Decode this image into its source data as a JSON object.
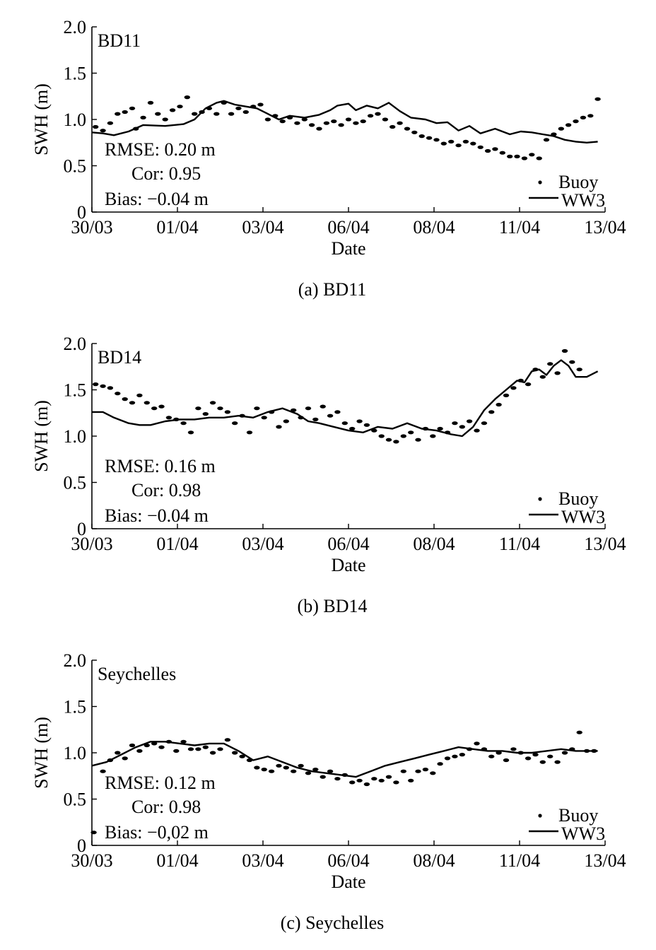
{
  "chart_data": [
    {
      "type": "line",
      "panel_caption": "(a) BD11",
      "station": "BD11",
      "ylabel": "SWH (m)",
      "xlabel": "Date",
      "ylim": [
        0,
        2.0
      ],
      "yticks": [
        "0",
        "0.5",
        "1.0",
        "1.5",
        "2.0"
      ],
      "xticks": [
        "30/03",
        "01/04",
        "03/04",
        "06/04",
        "08/04",
        "11/04",
        "13/04"
      ],
      "xlim": [
        0,
        14
      ],
      "stats": [
        "RMSE: 0.20 m",
        "Cor: 0.95",
        "Bias: −0.04 m"
      ],
      "legend": [
        "Buoy",
        "WW3"
      ],
      "series": [
        {
          "name": "WW3",
          "style": "line",
          "x": [
            0,
            0.3,
            0.6,
            1.0,
            1.4,
            2.0,
            2.5,
            2.8,
            3.1,
            3.4,
            3.6,
            3.9,
            4.2,
            4.5,
            4.8,
            5.1,
            5.4,
            5.8,
            6.2,
            6.5,
            6.7,
            7.0,
            7.2,
            7.5,
            7.8,
            8.1,
            8.4,
            8.7,
            9.1,
            9.4,
            9.7,
            10.0,
            10.3,
            10.6,
            11.0,
            11.4,
            11.7,
            12.0,
            12.3,
            12.6,
            12.9,
            13.2,
            13.5,
            13.8
          ],
          "y": [
            0.86,
            0.85,
            0.83,
            0.87,
            0.94,
            0.93,
            0.95,
            1.0,
            1.12,
            1.18,
            1.2,
            1.16,
            1.14,
            1.12,
            1.06,
            1.0,
            1.04,
            1.02,
            1.05,
            1.1,
            1.15,
            1.17,
            1.1,
            1.15,
            1.12,
            1.18,
            1.09,
            1.02,
            1.0,
            0.96,
            0.97,
            0.88,
            0.93,
            0.85,
            0.9,
            0.84,
            0.87,
            0.86,
            0.84,
            0.82,
            0.78,
            0.76,
            0.75,
            0.76
          ]
        },
        {
          "name": "Buoy",
          "style": "dots",
          "x": [
            0.1,
            0.3,
            0.5,
            0.7,
            0.9,
            1.1,
            1.2,
            1.4,
            1.6,
            1.8,
            2.0,
            2.2,
            2.4,
            2.6,
            2.8,
            3.0,
            3.2,
            3.4,
            3.6,
            3.8,
            4.0,
            4.2,
            4.4,
            4.6,
            4.8,
            5.0,
            5.2,
            5.4,
            5.6,
            5.8,
            6.0,
            6.2,
            6.4,
            6.6,
            6.8,
            7.0,
            7.2,
            7.4,
            7.6,
            7.8,
            8.0,
            8.2,
            8.4,
            8.6,
            8.8,
            9.0,
            9.2,
            9.4,
            9.6,
            9.8,
            10.0,
            10.2,
            10.4,
            10.6,
            10.8,
            11.0,
            11.2,
            11.4,
            11.6,
            11.8,
            12.0,
            12.2,
            12.4,
            12.6,
            12.8,
            13.0,
            13.2,
            13.4,
            13.6,
            13.8
          ],
          "y": [
            0.92,
            0.88,
            0.96,
            1.06,
            1.08,
            1.12,
            0.9,
            1.02,
            1.18,
            1.06,
            1.0,
            1.1,
            1.14,
            1.24,
            1.06,
            1.08,
            1.12,
            1.06,
            1.18,
            1.06,
            1.12,
            1.08,
            1.14,
            1.16,
            1.0,
            1.04,
            0.98,
            1.02,
            0.96,
            1.0,
            0.94,
            0.9,
            0.96,
            0.98,
            0.94,
            1.0,
            0.96,
            0.98,
            1.04,
            1.06,
            1.0,
            0.92,
            0.96,
            0.9,
            0.86,
            0.82,
            0.8,
            0.78,
            0.74,
            0.76,
            0.72,
            0.76,
            0.74,
            0.7,
            0.66,
            0.68,
            0.64,
            0.6,
            0.6,
            0.58,
            0.62,
            0.58,
            0.78,
            0.84,
            0.9,
            0.94,
            0.98,
            1.02,
            1.04,
            1.22
          ]
        }
      ]
    },
    {
      "type": "line",
      "panel_caption": "(b) BD14",
      "station": "BD14",
      "ylabel": "SWH (m)",
      "xlabel": "Date",
      "ylim": [
        0,
        2.0
      ],
      "yticks": [
        "0",
        "0.5",
        "1.0",
        "1.5",
        "2.0"
      ],
      "xticks": [
        "30/03",
        "01/04",
        "03/04",
        "06/04",
        "08/04",
        "11/04",
        "13/04"
      ],
      "xlim": [
        0,
        14
      ],
      "stats": [
        "RMSE: 0.16 m",
        "Cor: 0.98",
        "Bias: −0.04 m"
      ],
      "legend": [
        "Buoy",
        "WW3"
      ],
      "series": [
        {
          "name": "WW3",
          "style": "line",
          "x": [
            0,
            0.3,
            0.6,
            1.0,
            1.3,
            1.6,
            2.0,
            2.4,
            2.8,
            3.2,
            3.6,
            4.0,
            4.4,
            4.8,
            5.2,
            5.6,
            5.9,
            6.2,
            6.6,
            7.0,
            7.4,
            7.8,
            8.2,
            8.6,
            9.0,
            9.4,
            9.8,
            10.1,
            10.4,
            10.7,
            11.0,
            11.3,
            11.6,
            11.8,
            12.0,
            12.2,
            12.4,
            12.6,
            12.8,
            13.0,
            13.2,
            13.5,
            13.8
          ],
          "y": [
            1.26,
            1.26,
            1.2,
            1.14,
            1.12,
            1.12,
            1.16,
            1.18,
            1.18,
            1.2,
            1.2,
            1.22,
            1.2,
            1.26,
            1.3,
            1.24,
            1.16,
            1.14,
            1.1,
            1.06,
            1.04,
            1.1,
            1.08,
            1.14,
            1.08,
            1.06,
            1.02,
            1.0,
            1.1,
            1.28,
            1.4,
            1.5,
            1.6,
            1.58,
            1.7,
            1.72,
            1.66,
            1.76,
            1.82,
            1.76,
            1.64,
            1.64,
            1.7
          ]
        },
        {
          "name": "Buoy",
          "style": "dots",
          "x": [
            0.1,
            0.3,
            0.5,
            0.7,
            0.9,
            1.1,
            1.3,
            1.5,
            1.7,
            1.9,
            2.1,
            2.3,
            2.5,
            2.7,
            2.9,
            3.1,
            3.3,
            3.5,
            3.7,
            3.9,
            4.1,
            4.3,
            4.5,
            4.7,
            4.9,
            5.1,
            5.3,
            5.5,
            5.7,
            5.9,
            6.1,
            6.3,
            6.5,
            6.7,
            6.9,
            7.1,
            7.3,
            7.5,
            7.7,
            7.9,
            8.1,
            8.3,
            8.5,
            8.7,
            8.9,
            9.1,
            9.3,
            9.5,
            9.7,
            9.9,
            10.1,
            10.3,
            10.5,
            10.7,
            10.9,
            11.1,
            11.3,
            11.5,
            11.7,
            11.9,
            12.1,
            12.3,
            12.5,
            12.7,
            12.9,
            13.1,
            13.3
          ],
          "y": [
            1.56,
            1.54,
            1.52,
            1.46,
            1.4,
            1.36,
            1.44,
            1.36,
            1.3,
            1.32,
            1.2,
            1.18,
            1.14,
            1.04,
            1.3,
            1.24,
            1.36,
            1.3,
            1.26,
            1.14,
            1.22,
            1.04,
            1.3,
            1.2,
            1.26,
            1.1,
            1.16,
            1.28,
            1.2,
            1.3,
            1.18,
            1.32,
            1.22,
            1.26,
            1.14,
            1.08,
            1.16,
            1.12,
            1.06,
            1.0,
            0.96,
            0.94,
            1.0,
            1.04,
            0.96,
            1.08,
            1.0,
            1.08,
            1.04,
            1.14,
            1.1,
            1.16,
            1.06,
            1.14,
            1.26,
            1.34,
            1.44,
            1.52,
            1.6,
            1.56,
            1.72,
            1.64,
            1.78,
            1.68,
            1.92,
            1.8,
            1.72
          ]
        }
      ]
    },
    {
      "type": "line",
      "panel_caption": "(c) Seychelles",
      "station": "Seychelles",
      "ylabel": "SWH (m)",
      "xlabel": "Date",
      "ylim": [
        0,
        2.0
      ],
      "yticks": [
        "0",
        "0.5",
        "1.0",
        "1.5",
        "2.0"
      ],
      "xticks": [
        "30/03",
        "01/04",
        "03/04",
        "06/04",
        "08/04",
        "11/04",
        "13/04"
      ],
      "xlim": [
        0,
        14
      ],
      "stats": [
        "RMSE: 0.12 m",
        "Cor: 0.98",
        "Bias: −0,02 m"
      ],
      "legend": [
        "Buoy",
        "WW3"
      ],
      "series": [
        {
          "name": "WW3",
          "style": "line",
          "x": [
            0,
            0.4,
            0.8,
            1.2,
            1.6,
            2.0,
            2.4,
            2.8,
            3.2,
            3.6,
            4.0,
            4.4,
            4.8,
            5.2,
            5.6,
            6.0,
            6.4,
            6.8,
            7.2,
            7.6,
            8.0,
            8.4,
            8.8,
            9.2,
            9.6,
            10.0,
            10.4,
            10.8,
            11.2,
            11.6,
            12.0,
            12.4,
            12.8,
            13.2,
            13.6,
            13.8
          ],
          "y": [
            0.86,
            0.9,
            0.98,
            1.06,
            1.12,
            1.12,
            1.1,
            1.08,
            1.1,
            1.1,
            1.02,
            0.92,
            0.96,
            0.9,
            0.84,
            0.8,
            0.78,
            0.76,
            0.74,
            0.8,
            0.86,
            0.9,
            0.94,
            0.98,
            1.02,
            1.06,
            1.04,
            1.02,
            1.02,
            1.0,
            1.0,
            1.02,
            1.04,
            1.02,
            1.02,
            1.02
          ]
        },
        {
          "name": "Buoy",
          "style": "dots",
          "x": [
            0.05,
            0.3,
            0.5,
            0.7,
            0.9,
            1.1,
            1.3,
            1.5,
            1.7,
            1.9,
            2.1,
            2.3,
            2.5,
            2.7,
            2.9,
            3.1,
            3.3,
            3.5,
            3.7,
            3.9,
            4.1,
            4.3,
            4.5,
            4.7,
            4.9,
            5.1,
            5.3,
            5.5,
            5.7,
            5.9,
            6.1,
            6.3,
            6.5,
            6.7,
            6.9,
            7.1,
            7.3,
            7.5,
            7.7,
            7.9,
            8.1,
            8.3,
            8.5,
            8.7,
            8.9,
            9.1,
            9.3,
            9.5,
            9.7,
            9.9,
            10.1,
            10.3,
            10.5,
            10.7,
            10.9,
            11.1,
            11.3,
            11.5,
            11.7,
            11.9,
            12.1,
            12.3,
            12.5,
            12.7,
            12.9,
            13.1,
            13.3,
            13.5,
            13.7
          ],
          "y": [
            0.14,
            0.8,
            0.92,
            1.0,
            0.94,
            1.08,
            1.02,
            1.08,
            1.1,
            1.06,
            1.12,
            1.02,
            1.12,
            1.04,
            1.04,
            1.06,
            1.0,
            1.04,
            1.14,
            1.0,
            0.96,
            0.92,
            0.84,
            0.82,
            0.8,
            0.86,
            0.84,
            0.8,
            0.86,
            0.78,
            0.82,
            0.74,
            0.8,
            0.72,
            0.76,
            0.68,
            0.7,
            0.66,
            0.72,
            0.7,
            0.74,
            0.68,
            0.8,
            0.7,
            0.8,
            0.82,
            0.78,
            0.88,
            0.94,
            0.96,
            0.98,
            1.04,
            1.1,
            1.04,
            0.96,
            1.0,
            0.92,
            1.04,
            1.0,
            0.94,
            0.98,
            0.9,
            0.96,
            0.9,
            1.0,
            1.04,
            1.22,
            1.02,
            1.02
          ]
        }
      ]
    }
  ]
}
